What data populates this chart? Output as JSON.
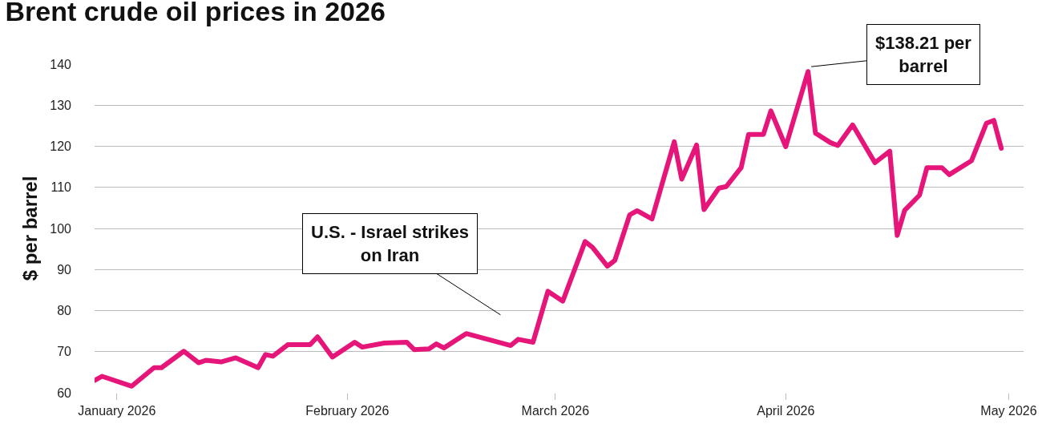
{
  "chart_data": {
    "type": "line",
    "title": "Brent crude oil prices in 2026",
    "ylabel": "$ per barrel",
    "x": [
      "2025-12-29",
      "2025-12-30",
      "2026-01-03",
      "2026-01-06",
      "2026-01-07",
      "2026-01-10",
      "2026-01-12",
      "2026-01-13",
      "2026-01-15",
      "2026-01-17",
      "2026-01-20",
      "2026-01-21",
      "2026-01-22",
      "2026-01-24",
      "2026-01-27",
      "2026-01-28",
      "2026-01-30",
      "2026-02-02",
      "2026-02-03",
      "2026-02-06",
      "2026-02-09",
      "2026-02-10",
      "2026-02-12",
      "2026-02-13",
      "2026-02-14",
      "2026-02-17",
      "2026-02-23",
      "2026-02-24",
      "2026-02-26",
      "2026-02-28",
      "2026-03-02",
      "2026-03-05",
      "2026-03-06",
      "2026-03-08",
      "2026-03-09",
      "2026-03-11",
      "2026-03-12",
      "2026-03-14",
      "2026-03-17",
      "2026-03-18",
      "2026-03-20",
      "2026-03-21",
      "2026-03-23",
      "2026-03-24",
      "2026-03-26",
      "2026-03-27",
      "2026-03-29",
      "2026-03-30",
      "2026-04-01",
      "2026-04-04",
      "2026-04-05",
      "2026-04-07",
      "2026-04-08",
      "2026-04-10",
      "2026-04-13",
      "2026-04-15",
      "2026-04-16",
      "2026-04-17",
      "2026-04-19",
      "2026-04-20",
      "2026-04-22",
      "2026-04-23",
      "2026-04-26",
      "2026-04-28",
      "2026-04-29",
      "2026-04-30"
    ],
    "series": [
      {
        "color": "#e6157a",
        "values": [
          63.0,
          64.0,
          61.6,
          66.1,
          66.1,
          70.1,
          67.3,
          67.9,
          67.5,
          68.5,
          66.1,
          69.3,
          68.9,
          71.7,
          71.7,
          73.6,
          68.7,
          72.3,
          71.1,
          72.1,
          72.3,
          70.5,
          70.7,
          71.9,
          70.9,
          74.4,
          71.5,
          73.0,
          72.3,
          84.7,
          82.3,
          96.8,
          95.4,
          90.8,
          92.2,
          103.3,
          104.3,
          102.3,
          121.1,
          112.0,
          120.3,
          104.6,
          109.8,
          110.2,
          114.8,
          122.9,
          122.9,
          128.6,
          119.9,
          138.2,
          123.2,
          120.9,
          120.2,
          125.2,
          116.0,
          118.8,
          98.3,
          104.4,
          108.1,
          114.8,
          114.8,
          113.1,
          116.5,
          125.6,
          126.3,
          119.5
        ]
      }
    ],
    "xlim": [
      "2025-12-29",
      "2026-05-03"
    ],
    "xticks": [
      {
        "value": "2026-01-01",
        "label": "January 2026"
      },
      {
        "value": "2026-02-01",
        "label": "February 2026"
      },
      {
        "value": "2026-03-01",
        "label": "March 2026"
      },
      {
        "value": "2026-04-01",
        "label": "April 2026"
      },
      {
        "value": "2026-05-01",
        "label": "May 2026"
      }
    ],
    "ylim": [
      60,
      140
    ],
    "yticks": [
      60,
      70,
      80,
      90,
      100,
      110,
      120,
      130,
      140
    ],
    "grid": "y",
    "marker": "none",
    "line_style": "solid",
    "annotations": [
      "U.S. - Israel strikes on Iran",
      {
        "text": "$138.21 per barrel",
        "x": "2026-04-04",
        "y": 138.21
      }
    ]
  }
}
